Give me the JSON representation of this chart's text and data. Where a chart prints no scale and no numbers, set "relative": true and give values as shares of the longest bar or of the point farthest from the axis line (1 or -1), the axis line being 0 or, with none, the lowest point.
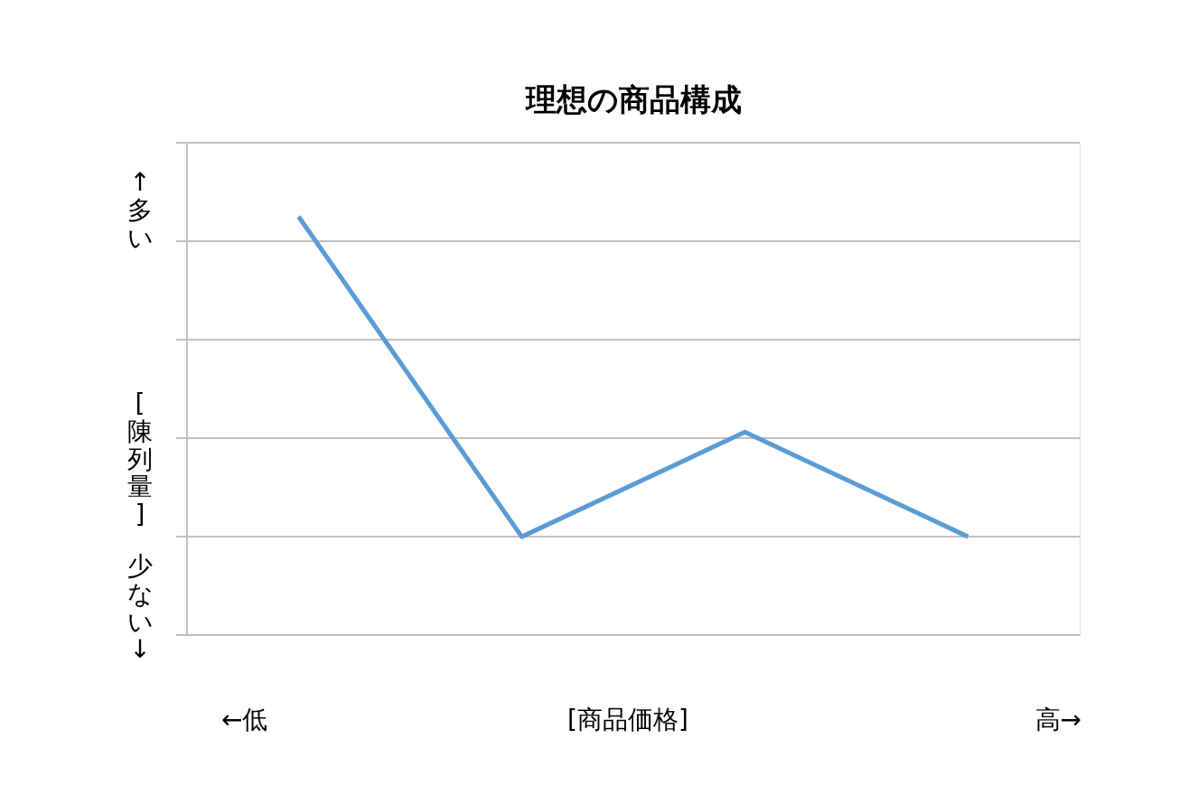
{
  "chart_data": {
    "type": "line",
    "title": "理想の商品構成",
    "xlabel": "[商品価格]",
    "ylabel": "[陳列量]",
    "categories": [
      null,
      null,
      null,
      null
    ],
    "series": [
      {
        "color": "#5b9bd5",
        "values": [
          1,
          0.235,
          0.485,
          0.235
        ]
      }
    ],
    "relative": true,
    "grid": "y",
    "marker": "none",
    "line_style": "solid",
    "annotations": [
      "↑多い",
      "少ない↓",
      "←低",
      "高→"
    ]
  }
}
